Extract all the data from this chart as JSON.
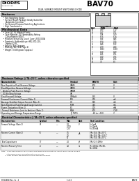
{
  "title": "BAV70",
  "subtitle": "DUAL SURFACE MOUNT SWITCHING DIODE",
  "bg_color": "#ffffff",
  "features_title": "Features",
  "features": [
    "Fast Switching Speed",
    "Surface Mount Package Ideally Suited for",
    "  Automatic Insertion",
    "For General Purpose Switching Applications",
    "High Conductance"
  ],
  "mech_title": "Mechanical Data",
  "mech_items": [
    "Case: SC-74, Molded Plastic",
    "Case Material: UL Flammability Rating",
    "  Classification 94V-0",
    "Moisture Sensitivity: Level 1 per J-STD-020A",
    "Terminals: Solderable per MIL-STD-202,",
    "  Method 208",
    "Polarity: See Diagram",
    "Marking: W2 (See Page 2)",
    "Weight: 0.008 grams (approx.)"
  ],
  "dim_headers": [
    "DIM",
    "MIN",
    "MAX"
  ],
  "dim_rows": [
    [
      "A",
      "0.89",
      "1.12"
    ],
    [
      "B",
      "0.37",
      "0.51"
    ],
    [
      "C",
      "0.08",
      "0.20"
    ],
    [
      "D",
      "1.15",
      "1.40"
    ],
    [
      "E",
      "0.45",
      "0.60"
    ],
    [
      "F",
      "1.78",
      "2.04"
    ],
    [
      "G",
      "0.89",
      "1.02"
    ],
    [
      "H",
      "2.10",
      "2.64"
    ],
    [
      "I",
      "0.013",
      "0.100"
    ],
    [
      "J",
      "0.10",
      "0.20"
    ],
    [
      "K",
      "0.25",
      "0.51"
    ],
    [
      "L",
      "0.40",
      "0.55"
    ],
    [
      "M",
      "0.40",
      "0.55"
    ],
    [
      "N",
      "3.0",
      "8.0"
    ]
  ],
  "max_ratings_title": "Maximum Ratings @ TA=25°C, unless otherwise specified",
  "max_ratings_headers": [
    "Characteristic",
    "Symbol",
    "BAV70",
    "Unit"
  ],
  "max_ratings_rows": [
    [
      "Non-Repetitive Peak Reverse Voltage",
      "VRSM",
      "100",
      "V"
    ],
    [
      "Peak Repetitive Reverse Voltage",
      "VRRM",
      "75",
      "V"
    ],
    [
      "  Working Peak Reverse Voltage",
      "VRWM",
      "",
      ""
    ],
    [
      "  DC Blocking Voltage",
      "VR",
      "",
      ""
    ],
    [
      "Peak Forward Voltage",
      "VFM(pk)",
      "150",
      "V"
    ],
    [
      "Forward Continuous Current (Note 1)",
      "IFM",
      "200",
      "mA"
    ],
    [
      "Average Rectified Output Current (Note 1)",
      "IO",
      "130",
      "mA"
    ],
    [
      "Non-Repetitive Peak Forward Surge Current",
      "IFSM",
      "400",
      "mA"
    ],
    [
      "Power Dissipation (Note 1)",
      "PD",
      "200",
      "mW"
    ],
    [
      "Thermal Resistance Junct to Ambient (Note 1)",
      "RθJA",
      "600",
      "°C/W"
    ],
    [
      "Operating and Storage Temperature Range",
      "TJ, TSTG",
      "-65 to +150",
      "°C"
    ]
  ],
  "elec_title": "Electrical Characteristics @ TA=25°C, unless otherwise specified",
  "elec_headers": [
    "Characteristic",
    "Symbol",
    "Min",
    "Max",
    "Unit",
    "Test Condition"
  ],
  "elec_rows": [
    [
      "Forward Voltage (Note 2)",
      "VF",
      "—",
      "1.0\n0.715\n1.25",
      "V",
      "IF=1mA\nIF=10mA\nIF=150mA"
    ],
    [
      "Reverse Current (Note 2)",
      "IR",
      "—",
      "0.5\n2.5\n50",
      "μA",
      "VR=25V, TA=25°C\nVR=25V, TA=125°C\nVR=75V, TA=25°C"
    ],
    [
      "Total Capacitance",
      "CT",
      "—",
      "2.0",
      "pF",
      "VR=0, f=1MHz"
    ],
    [
      "Reverse Recovery Time",
      "trr",
      "—",
      "4.0",
      "ns",
      "IF=10mA, VR=6V,\nRL=100Ω"
    ]
  ],
  "note_lines": [
    "Note:  1. Recommended on FR-4 or equivalent board environment and layout, which can be found at",
    "          http://www.diodes.com/datasheets/ap02001.pdf",
    "       2. Short duration test used to minimize self-heating effect."
  ],
  "footer_left": "DS14684 Rev. 1c - 2",
  "footer_mid": "1 of 2",
  "footer_right": "BAV70"
}
